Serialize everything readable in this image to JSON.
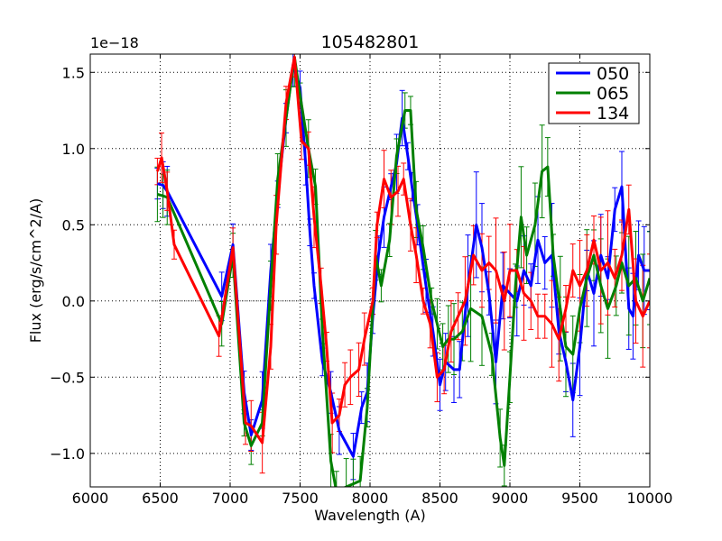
{
  "chart_data": {
    "type": "line",
    "title": "105482801",
    "xlabel": "Wavelength (A)",
    "ylabel": "Flux (erg/s/cm^2/A)",
    "offset_label": "1e−18",
    "xlim": [
      6000,
      10000
    ],
    "ylim": [
      -1.22,
      1.62
    ],
    "x_ticks": [
      6000,
      6500,
      7000,
      7500,
      8000,
      8500,
      9000,
      9500,
      10000
    ],
    "y_ticks": [
      -1.0,
      -0.5,
      0.0,
      0.5,
      1.0,
      1.5
    ],
    "x_tick_labels": [
      "6000",
      "6500",
      "7000",
      "7500",
      "8000",
      "8500",
      "9000",
      "9500",
      "10000"
    ],
    "y_tick_labels": [
      "−1.0",
      "−0.5",
      "0.0",
      "0.5",
      "1.0",
      "1.5"
    ],
    "grid": true,
    "legend_position": "top-right",
    "series": [
      {
        "name": "050",
        "color": "#0000ff",
        "points": [
          [
            6480,
            0.77
          ],
          [
            6520,
            0.76
          ],
          [
            6550,
            0.72
          ],
          [
            6940,
            0.03
          ],
          [
            7020,
            0.37
          ],
          [
            7100,
            -0.6
          ],
          [
            7150,
            -0.88
          ],
          [
            7230,
            -0.65
          ],
          [
            7290,
            0.2
          ],
          [
            7340,
            0.7
          ],
          [
            7400,
            1.2
          ],
          [
            7450,
            1.55
          ],
          [
            7500,
            1.4
          ],
          [
            7540,
            0.9
          ],
          [
            7570,
            0.45
          ],
          [
            7600,
            0.1
          ],
          [
            7660,
            -0.4
          ],
          [
            7720,
            -0.6
          ],
          [
            7780,
            -0.85
          ],
          [
            7880,
            -1.02
          ],
          [
            7940,
            -0.7
          ],
          [
            7980,
            -0.6
          ],
          [
            8020,
            -0.1
          ],
          [
            8060,
            0.3
          ],
          [
            8100,
            0.55
          ],
          [
            8150,
            0.75
          ],
          [
            8190,
            0.9
          ],
          [
            8230,
            1.2
          ],
          [
            8270,
            0.95
          ],
          [
            8300,
            0.75
          ],
          [
            8340,
            0.5
          ],
          [
            8400,
            0.1
          ],
          [
            8450,
            -0.2
          ],
          [
            8500,
            -0.55
          ],
          [
            8540,
            -0.4
          ],
          [
            8600,
            -0.45
          ],
          [
            8640,
            -0.45
          ],
          [
            8700,
            0.1
          ],
          [
            8760,
            0.5
          ],
          [
            8800,
            0.35
          ],
          [
            8850,
            0.05
          ],
          [
            8900,
            -0.4
          ],
          [
            8950,
            0.1
          ],
          [
            9000,
            0.05
          ],
          [
            9050,
            0.0
          ],
          [
            9100,
            0.2
          ],
          [
            9150,
            0.1
          ],
          [
            9200,
            0.4
          ],
          [
            9250,
            0.25
          ],
          [
            9300,
            0.3
          ],
          [
            9350,
            -0.2
          ],
          [
            9400,
            -0.4
          ],
          [
            9450,
            -0.65
          ],
          [
            9500,
            -0.3
          ],
          [
            9550,
            0.2
          ],
          [
            9600,
            0.05
          ],
          [
            9650,
            0.3
          ],
          [
            9700,
            0.15
          ],
          [
            9750,
            0.6
          ],
          [
            9800,
            0.75
          ],
          [
            9850,
            -0.05
          ],
          [
            9880,
            -0.1
          ],
          [
            9920,
            0.3
          ],
          [
            9960,
            0.2
          ],
          [
            10000,
            0.2
          ]
        ]
      },
      {
        "name": "065",
        "color": "#008000",
        "points": [
          [
            6480,
            0.7
          ],
          [
            6520,
            0.69
          ],
          [
            6550,
            0.68
          ],
          [
            6940,
            -0.15
          ],
          [
            7020,
            0.3
          ],
          [
            7100,
            -0.8
          ],
          [
            7150,
            -0.95
          ],
          [
            7230,
            -0.8
          ],
          [
            7290,
            0.1
          ],
          [
            7340,
            0.8
          ],
          [
            7400,
            1.2
          ],
          [
            7460,
            1.6
          ],
          [
            7500,
            1.35
          ],
          [
            7560,
            1.0
          ],
          [
            7610,
            0.75
          ],
          [
            7660,
            -0.2
          ],
          [
            7720,
            -1.05
          ],
          [
            7760,
            -1.25
          ],
          [
            7830,
            -1.22
          ],
          [
            7880,
            -1.2
          ],
          [
            7930,
            -1.18
          ],
          [
            7980,
            -0.7
          ],
          [
            8040,
            0.3
          ],
          [
            8080,
            0.1
          ],
          [
            8140,
            0.4
          ],
          [
            8190,
            0.95
          ],
          [
            8250,
            1.25
          ],
          [
            8290,
            1.25
          ],
          [
            8330,
            0.6
          ],
          [
            8380,
            0.35
          ],
          [
            8440,
            0.0
          ],
          [
            8480,
            -0.15
          ],
          [
            8520,
            -0.3
          ],
          [
            8560,
            -0.25
          ],
          [
            8600,
            -0.25
          ],
          [
            8660,
            -0.2
          ],
          [
            8720,
            -0.05
          ],
          [
            8800,
            -0.1
          ],
          [
            8870,
            -0.35
          ],
          [
            8930,
            -0.9
          ],
          [
            8960,
            -1.08
          ],
          [
            9000,
            -0.5
          ],
          [
            9040,
            0.1
          ],
          [
            9080,
            0.55
          ],
          [
            9120,
            0.3
          ],
          [
            9180,
            0.5
          ],
          [
            9230,
            0.85
          ],
          [
            9270,
            0.88
          ],
          [
            9310,
            0.3
          ],
          [
            9360,
            -0.05
          ],
          [
            9400,
            -0.3
          ],
          [
            9450,
            -0.35
          ],
          [
            9500,
            -0.05
          ],
          [
            9550,
            0.15
          ],
          [
            9600,
            0.3
          ],
          [
            9650,
            0.1
          ],
          [
            9700,
            -0.05
          ],
          [
            9760,
            0.1
          ],
          [
            9800,
            0.25
          ],
          [
            9850,
            0.1
          ],
          [
            9900,
            0.15
          ],
          [
            9950,
            0.0
          ],
          [
            10000,
            0.15
          ]
        ]
      },
      {
        "name": "134",
        "color": "#ff0000",
        "points": [
          [
            6480,
            0.85
          ],
          [
            6510,
            0.94
          ],
          [
            6550,
            0.72
          ],
          [
            6600,
            0.37
          ],
          [
            6920,
            -0.23
          ],
          [
            7020,
            0.35
          ],
          [
            7110,
            -0.8
          ],
          [
            7150,
            -0.82
          ],
          [
            7230,
            -0.93
          ],
          [
            7290,
            -0.3
          ],
          [
            7330,
            0.5
          ],
          [
            7400,
            1.3
          ],
          [
            7460,
            1.6
          ],
          [
            7510,
            1.05
          ],
          [
            7560,
            1.0
          ],
          [
            7600,
            0.55
          ],
          [
            7650,
            0.1
          ],
          [
            7690,
            -0.3
          ],
          [
            7730,
            -0.8
          ],
          [
            7780,
            -0.75
          ],
          [
            7820,
            -0.55
          ],
          [
            7860,
            -0.5
          ],
          [
            7920,
            -0.45
          ],
          [
            7960,
            -0.25
          ],
          [
            8020,
            0.0
          ],
          [
            8050,
            0.5
          ],
          [
            8100,
            0.8
          ],
          [
            8150,
            0.68
          ],
          [
            8200,
            0.72
          ],
          [
            8240,
            0.8
          ],
          [
            8290,
            0.5
          ],
          [
            8330,
            0.3
          ],
          [
            8380,
            0.0
          ],
          [
            8430,
            -0.15
          ],
          [
            8480,
            -0.5
          ],
          [
            8530,
            -0.45
          ],
          [
            8580,
            -0.2
          ],
          [
            8630,
            -0.1
          ],
          [
            8680,
            0.0
          ],
          [
            8740,
            0.3
          ],
          [
            8800,
            0.2
          ],
          [
            8850,
            0.25
          ],
          [
            8900,
            0.2
          ],
          [
            8960,
            0.0
          ],
          [
            9000,
            0.2
          ],
          [
            9050,
            0.2
          ],
          [
            9100,
            0.05
          ],
          [
            9150,
            0.0
          ],
          [
            9200,
            -0.1
          ],
          [
            9250,
            -0.1
          ],
          [
            9300,
            -0.15
          ],
          [
            9350,
            -0.25
          ],
          [
            9400,
            -0.05
          ],
          [
            9450,
            0.2
          ],
          [
            9500,
            0.1
          ],
          [
            9550,
            0.2
          ],
          [
            9600,
            0.4
          ],
          [
            9650,
            0.2
          ],
          [
            9700,
            0.25
          ],
          [
            9750,
            0.15
          ],
          [
            9800,
            0.3
          ],
          [
            9850,
            0.6
          ],
          [
            9900,
            0.0
          ],
          [
            9950,
            -0.1
          ],
          [
            10000,
            0.0
          ]
        ]
      }
    ]
  }
}
